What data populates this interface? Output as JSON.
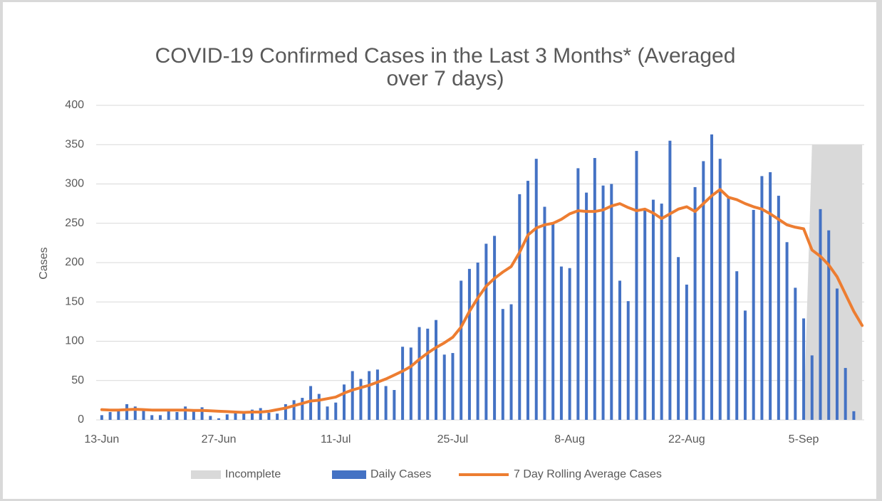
{
  "chart_data": {
    "type": "combo",
    "title": [
      "COVID-19 Confirmed Cases in the Last 3 Months* (Averaged",
      "over 7 days)"
    ],
    "y_label": "Cases",
    "categories": [
      "13-Jun",
      null,
      null,
      null,
      null,
      null,
      null,
      null,
      null,
      null,
      null,
      null,
      null,
      null,
      "27-Jun",
      null,
      null,
      null,
      null,
      null,
      null,
      null,
      null,
      null,
      null,
      null,
      null,
      null,
      "11-Jul",
      null,
      null,
      null,
      null,
      null,
      null,
      null,
      null,
      null,
      null,
      null,
      null,
      null,
      "25-Jul",
      null,
      null,
      null,
      null,
      null,
      null,
      null,
      null,
      null,
      null,
      null,
      null,
      null,
      "8-Aug",
      null,
      null,
      null,
      null,
      null,
      null,
      null,
      null,
      null,
      null,
      null,
      null,
      null,
      "22-Aug",
      null,
      null,
      null,
      null,
      null,
      null,
      null,
      null,
      null,
      null,
      null,
      null,
      null,
      "5-Sep",
      null,
      null,
      null,
      null,
      null,
      null,
      null
    ],
    "ylim": [
      0,
      400
    ],
    "yticks": [
      0,
      50,
      100,
      150,
      200,
      250,
      300,
      350,
      400
    ],
    "grid": true,
    "legend": "bottom",
    "series": [
      {
        "name": "Incomplete",
        "type": "area",
        "color": "#d9d9d9",
        "values": [
          0,
          0,
          0,
          0,
          0,
          0,
          0,
          0,
          0,
          0,
          0,
          0,
          0,
          0,
          0,
          0,
          0,
          0,
          0,
          0,
          0,
          0,
          0,
          0,
          0,
          0,
          0,
          0,
          0,
          0,
          0,
          0,
          0,
          0,
          0,
          0,
          0,
          0,
          0,
          0,
          0,
          0,
          0,
          0,
          0,
          0,
          0,
          0,
          0,
          0,
          0,
          0,
          0,
          0,
          0,
          0,
          0,
          0,
          0,
          0,
          0,
          0,
          0,
          0,
          0,
          0,
          0,
          0,
          0,
          0,
          0,
          0,
          0,
          0,
          0,
          0,
          0,
          0,
          0,
          0,
          0,
          0,
          0,
          0,
          0,
          350,
          350,
          350,
          350,
          350,
          350,
          350
        ]
      },
      {
        "name": "Daily Cases",
        "type": "bar",
        "color": "#4472c4",
        "values": [
          6,
          10,
          12,
          20,
          17,
          14,
          6,
          6,
          12,
          10,
          17,
          12,
          16,
          5,
          2,
          7,
          10,
          11,
          13,
          15,
          9,
          8,
          20,
          25,
          28,
          43,
          33,
          17,
          22,
          45,
          62,
          52,
          62,
          64,
          43,
          38,
          93,
          92,
          118,
          116,
          127,
          83,
          85,
          177,
          192,
          200,
          224,
          234,
          141,
          147,
          287,
          304,
          332,
          271,
          250,
          195,
          193,
          320,
          289,
          333,
          298,
          300,
          177,
          151,
          342,
          268,
          280,
          275,
          355,
          207,
          172,
          296,
          329,
          363,
          332,
          282,
          189,
          139,
          267,
          310,
          315,
          285,
          226,
          168,
          129,
          82,
          268,
          241,
          167,
          66,
          11,
          null
        ]
      },
      {
        "name": "7 Day Rolling Average Cases",
        "type": "line",
        "color": "#ed7d31",
        "values": [
          13,
          12.5,
          12.5,
          13,
          13.5,
          13,
          12.5,
          12.5,
          12.5,
          12.5,
          12.5,
          12,
          12,
          11.5,
          11,
          10.5,
          10,
          9.5,
          10,
          10,
          11,
          13,
          15,
          18,
          21,
          24,
          25,
          27,
          29,
          34,
          38,
          41,
          44,
          48,
          52,
          57,
          62,
          68,
          77,
          85,
          92,
          98,
          105,
          118,
          138,
          155,
          170,
          180,
          188,
          195,
          213,
          235,
          244,
          248,
          250,
          255,
          262,
          266,
          265,
          265,
          267,
          272,
          275,
          270,
          266,
          268,
          263,
          256,
          262,
          268,
          271,
          265,
          275,
          285,
          293,
          283,
          280,
          275,
          271,
          268,
          262,
          255,
          248,
          245,
          243,
          216,
          208,
          197,
          182,
          160,
          138,
          120
        ]
      }
    ]
  }
}
